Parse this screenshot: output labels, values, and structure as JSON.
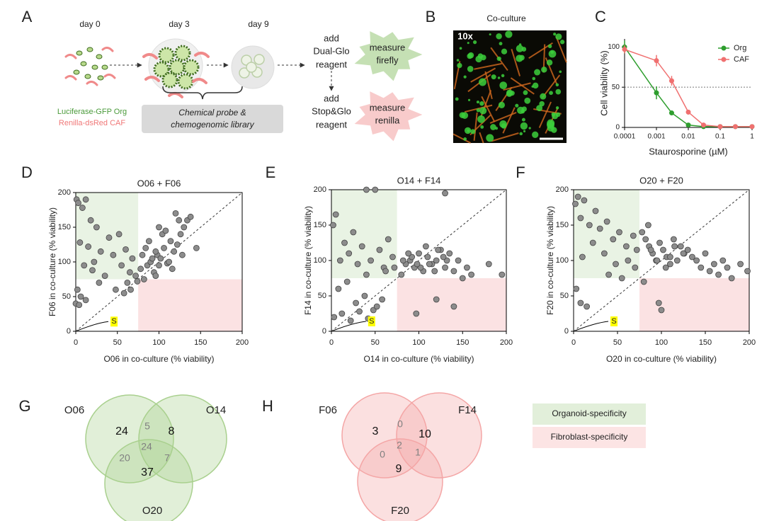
{
  "panel_labels": [
    "A",
    "B",
    "C",
    "D",
    "E",
    "F",
    "G",
    "H"
  ],
  "diagram": {
    "days": [
      "day 0",
      "day 3",
      "day 9"
    ],
    "cell_legend": [
      "Luciferase-GFP Org",
      "Renilla-dsRed CAF"
    ],
    "library_box": [
      "Chemical probe &",
      "chemogenomic library"
    ],
    "step1": [
      "add",
      "Dual-Glo",
      "reagent"
    ],
    "step2": [
      "add",
      "Stop&Glo",
      "reagent"
    ],
    "measure1": [
      "measure",
      "firefly"
    ],
    "measure2": [
      "measure",
      "renilla"
    ]
  },
  "image": {
    "title": "Co-culture",
    "magnification": "10x"
  },
  "chart_data": [
    {
      "type": "line",
      "xlabel": "Staurosporine (µM)",
      "ylabel": "Cell viability (%)",
      "xscale": "log",
      "xlim": [
        0.0001,
        1
      ],
      "xticks": [
        0.0001,
        0.001,
        0.01,
        0.1,
        1
      ],
      "ylim": [
        0,
        110
      ],
      "yticks": [
        0,
        50,
        100
      ],
      "hline": 50,
      "legend": "upper right",
      "x": [
        0.0001,
        0.001,
        0.003,
        0.01,
        0.03,
        0.1,
        0.3,
        1
      ],
      "series": [
        {
          "name": "Org",
          "color": "#2e9e2e",
          "values": [
            100,
            43,
            18,
            3,
            1,
            1,
            1,
            1
          ],
          "errors": [
            8,
            8,
            0,
            0,
            0,
            0,
            0,
            0
          ]
        },
        {
          "name": "CAF",
          "color": "#f07070",
          "values": [
            97,
            83,
            58,
            19,
            3,
            1,
            1,
            1
          ],
          "errors": [
            5,
            7,
            6,
            3,
            0,
            0,
            0,
            0
          ]
        }
      ]
    },
    {
      "type": "scatter",
      "title": "O06 + F06",
      "xlabel": "O06 in co-culture (% viability)",
      "ylabel": "F06 in co-culture (% viability)",
      "xlim": [
        0,
        200
      ],
      "ylim": [
        0,
        200
      ],
      "xticks": [
        0,
        50,
        100,
        150,
        200
      ],
      "yticks": [
        0,
        50,
        100,
        150,
        200
      ],
      "diagonal": true,
      "threshold": 75,
      "region_colors": [
        "#e9f3e4",
        "#fbe2e3"
      ],
      "color": "#8c8c8c",
      "annotation": "S",
      "x": [
        1,
        3,
        8,
        12,
        18,
        25,
        5,
        15,
        22,
        30,
        40,
        52,
        60,
        68,
        10,
        20,
        35,
        45,
        55,
        65,
        2,
        6,
        12,
        0,
        4,
        28,
        48,
        62,
        72,
        78,
        82,
        86,
        90,
        94,
        98,
        102,
        106,
        110,
        114,
        118,
        122,
        126,
        130,
        134,
        138,
        145,
        80,
        88,
        96,
        104,
        112,
        120,
        128,
        84,
        92,
        100,
        108,
        116,
        124,
        100,
        96,
        74,
        66,
        58
      ],
      "y": [
        190,
        185,
        178,
        190,
        160,
        150,
        128,
        122,
        100,
        115,
        135,
        140,
        118,
        105,
        95,
        88,
        80,
        110,
        95,
        85,
        60,
        50,
        45,
        40,
        38,
        70,
        60,
        70,
        80,
        90,
        75,
        95,
        100,
        85,
        110,
        105,
        120,
        98,
        130,
        115,
        125,
        140,
        150,
        160,
        165,
        120,
        110,
        130,
        115,
        140,
        100,
        170,
        110,
        120,
        105,
        95,
        145,
        90,
        160,
        150,
        80,
        72,
        60,
        55
      ]
    },
    {
      "type": "scatter",
      "title": "O14 + F14",
      "xlabel": "O14 in co-culture (% viability)",
      "ylabel": "F14 in co-culture (% viability)",
      "xlim": [
        0,
        200
      ],
      "ylim": [
        0,
        200
      ],
      "xticks": [
        0,
        50,
        100,
        150,
        200
      ],
      "yticks": [
        0,
        50,
        100,
        150,
        200
      ],
      "diagonal": true,
      "threshold": 75,
      "region_colors": [
        "#e9f3e4",
        "#fbe2e3"
      ],
      "color": "#8c8c8c",
      "annotation": "S",
      "x": [
        2,
        5,
        10,
        15,
        20,
        25,
        30,
        35,
        40,
        45,
        50,
        55,
        60,
        65,
        70,
        8,
        18,
        28,
        38,
        48,
        58,
        3,
        12,
        22,
        32,
        42,
        52,
        62,
        72,
        80,
        85,
        90,
        95,
        100,
        105,
        110,
        115,
        120,
        125,
        130,
        135,
        140,
        145,
        150,
        155,
        160,
        180,
        195,
        82,
        92,
        102,
        112,
        122,
        132,
        88,
        98,
        108,
        118,
        128,
        97,
        120,
        140,
        40,
        130
      ],
      "y": [
        150,
        165,
        100,
        125,
        110,
        140,
        95,
        120,
        80,
        100,
        200,
        115,
        90,
        130,
        105,
        60,
        70,
        40,
        50,
        30,
        45,
        20,
        25,
        15,
        28,
        18,
        35,
        85,
        90,
        80,
        95,
        100,
        90,
        110,
        85,
        105,
        95,
        100,
        115,
        90,
        110,
        85,
        100,
        75,
        90,
        80,
        95,
        80,
        100,
        105,
        90,
        95,
        115,
        100,
        110,
        95,
        120,
        85,
        105,
        25,
        45,
        35,
        200,
        195
      ]
    },
    {
      "type": "scatter",
      "title": "O20 + F20",
      "xlabel": "O20 in co-culture (% viability)",
      "ylabel": "F20 in co-culture (% viability)",
      "xlim": [
        0,
        200
      ],
      "ylim": [
        0,
        200
      ],
      "xticks": [
        0,
        50,
        100,
        150,
        200
      ],
      "yticks": [
        0,
        50,
        100,
        150,
        200
      ],
      "diagonal": true,
      "threshold": 75,
      "region_colors": [
        "#e9f3e4",
        "#fbe2e3"
      ],
      "color": "#8c8c8c",
      "annotation": "S",
      "x": [
        2,
        5,
        8,
        12,
        18,
        25,
        30,
        38,
        45,
        52,
        60,
        68,
        10,
        22,
        35,
        48,
        62,
        72,
        3,
        8,
        15,
        40,
        55,
        70,
        78,
        82,
        86,
        90,
        94,
        98,
        102,
        106,
        110,
        114,
        118,
        122,
        126,
        130,
        135,
        140,
        145,
        150,
        155,
        160,
        165,
        170,
        175,
        180,
        190,
        198,
        85,
        95,
        105,
        115,
        125,
        100,
        97,
        80,
        88,
        110
      ],
      "y": [
        180,
        190,
        160,
        185,
        150,
        170,
        145,
        155,
        130,
        140,
        120,
        135,
        105,
        125,
        110,
        95,
        100,
        115,
        60,
        40,
        35,
        80,
        75,
        90,
        140,
        130,
        120,
        110,
        100,
        125,
        115,
        105,
        95,
        130,
        100,
        120,
        110,
        115,
        105,
        100,
        90,
        110,
        85,
        95,
        80,
        100,
        90,
        75,
        95,
        85,
        150,
        100,
        90,
        120,
        110,
        30,
        40,
        70,
        115,
        105
      ]
    }
  ],
  "venn": [
    {
      "labels": [
        "O06",
        "O14",
        "O20"
      ],
      "counts": [
        24,
        8,
        37,
        5,
        20,
        7,
        24
      ],
      "color": "#a9d08e"
    },
    {
      "labels": [
        "F06",
        "F14",
        "F20"
      ],
      "counts": [
        3,
        10,
        9,
        0,
        0,
        1,
        2
      ],
      "color": "#f4a6a6"
    }
  ],
  "specificity_legend": [
    {
      "label": "Organoid-specificity",
      "color": "#e2efda"
    },
    {
      "label": "Fibroblast-specificity",
      "color": "#fce4e4"
    }
  ]
}
